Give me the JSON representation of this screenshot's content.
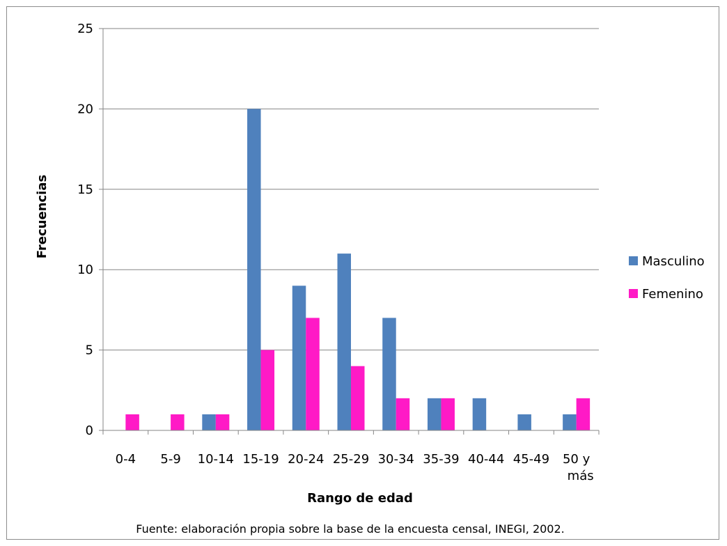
{
  "chart_data": {
    "type": "bar",
    "categories": [
      "0-4",
      "5-9",
      "10-14",
      "15-19",
      "20-24",
      "25-29",
      "30-34",
      "35-39",
      "40-44",
      "45-49",
      "50 y más"
    ],
    "series": [
      {
        "name": "Masculino",
        "values": [
          0,
          0,
          1,
          20,
          9,
          11,
          7,
          2,
          2,
          1,
          1
        ],
        "color": "#4f81bd"
      },
      {
        "name": "Femenino",
        "values": [
          1,
          1,
          1,
          5,
          7,
          4,
          2,
          2,
          0,
          0,
          2
        ],
        "color": "#ff1ac6"
      }
    ],
    "title": "",
    "xlabel": "Rango de edad",
    "ylabel": "Frecuencias",
    "ylim": [
      0,
      25
    ],
    "yticks": [
      0,
      5,
      10,
      15,
      20,
      25
    ],
    "grid": true,
    "legend_position": "right",
    "gridline_color": "#868686"
  },
  "footer": {
    "source": "Fuente: elaboración propia sobre la  base de la encuesta censal, INEGI, 2002."
  }
}
